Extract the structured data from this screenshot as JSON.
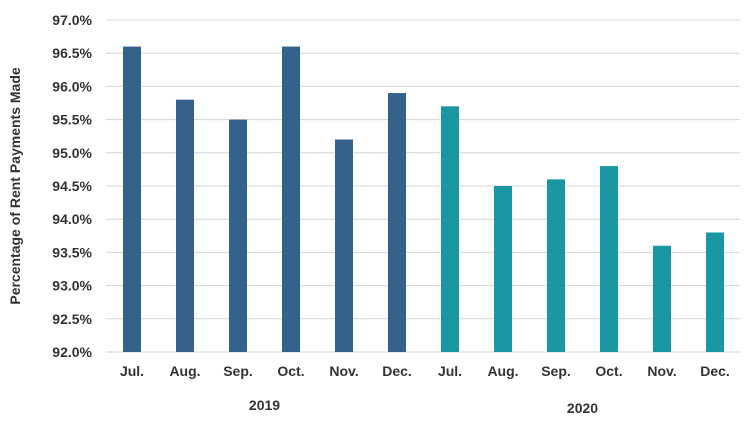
{
  "chart_data": {
    "type": "bar",
    "title": "",
    "ylabel": "Percentage of Rent Payments Made",
    "xlabel": "",
    "ylim": [
      92.0,
      97.0
    ],
    "yticks": [
      "92.0%",
      "92.5%",
      "93.0%",
      "93.5%",
      "94.0%",
      "94.5%",
      "95.0%",
      "95.5%",
      "96.0%",
      "96.5%",
      "97.0%"
    ],
    "grid": true,
    "legend": "none",
    "categories": [
      "Jul.",
      "Aug.",
      "Sep.",
      "Oct.",
      "Nov.",
      "Dec.",
      "Jul.",
      "Aug.",
      "Sep.",
      "Oct.",
      "Nov.",
      "Dec."
    ],
    "groups": [
      {
        "label": "2019",
        "color": "#34628a",
        "start": 0,
        "count": 6
      },
      {
        "label": "2020",
        "color": "#1b96a3",
        "start": 6,
        "count": 6
      }
    ],
    "values": [
      96.6,
      95.8,
      95.5,
      96.6,
      95.2,
      95.9,
      95.7,
      94.5,
      94.6,
      94.8,
      93.6,
      93.8
    ]
  }
}
